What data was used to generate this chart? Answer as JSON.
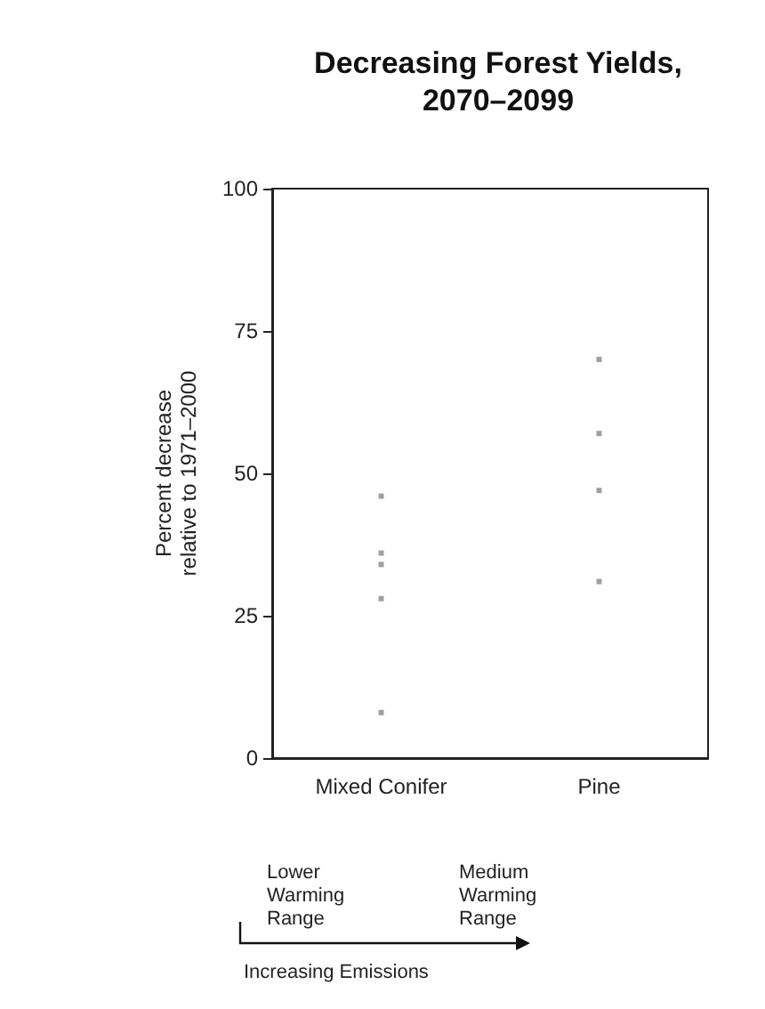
{
  "chart_data": {
    "type": "scatter",
    "title": "Decreasing Forest Yields,\n2070–2099",
    "ylabel": "Percent decrease\nrelative to 1971–2000",
    "categories": [
      "Mixed Conifer",
      "Pine"
    ],
    "series": [
      {
        "color": "#888888",
        "x": [
          "Mixed Conifer",
          "Mixed Conifer",
          "Mixed Conifer",
          "Mixed Conifer",
          "Mixed Conifer",
          "Pine",
          "Pine",
          "Pine",
          "Pine"
        ],
        "values": [
          46,
          36,
          34,
          28,
          8,
          70,
          57,
          47,
          31
        ]
      }
    ],
    "ylim": [
      0,
      100
    ],
    "yticks": [
      0,
      25,
      50,
      75,
      100
    ],
    "grid": false,
    "marker": "square",
    "annotations": [
      "Lower\nWarming\nRange",
      "Medium\nWarming\nRange",
      "Increasing Emissions"
    ]
  }
}
